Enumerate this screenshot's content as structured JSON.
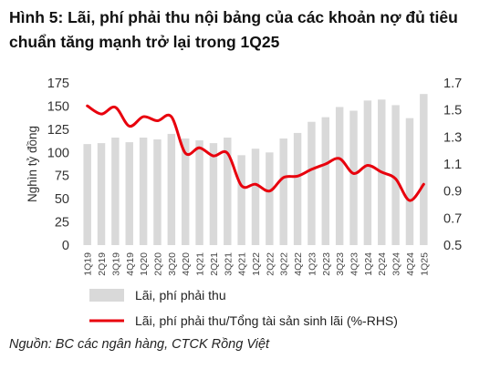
{
  "chart_data": {
    "type": "bar",
    "title": "Hình 5: Lãi, phí phải thu nội bảng của các khoản nợ đủ tiêu chuẩn tăng mạnh trở lại trong 1Q25",
    "source": "Nguồn: BC các ngân hàng, CTCK Rồng Việt",
    "ylabel": "Nghìn tỷ đồng",
    "ylim": [
      0,
      175
    ],
    "yticks": [
      "0",
      "25",
      "50",
      "75",
      "100",
      "125",
      "150",
      "175"
    ],
    "y2lim": [
      0.5,
      1.7
    ],
    "y2ticks": [
      "0.5",
      "0.7",
      "0.9",
      "1.1",
      "1.3",
      "1.5",
      "1.7"
    ],
    "categories": [
      "1Q19",
      "2Q19",
      "3Q19",
      "4Q19",
      "1Q20",
      "2Q20",
      "3Q20",
      "4Q20",
      "1Q21",
      "2Q21",
      "3Q21",
      "4Q21",
      "1Q22",
      "2Q22",
      "3Q22",
      "4Q22",
      "1Q23",
      "2Q23",
      "3Q23",
      "4Q23",
      "1Q24",
      "2Q24",
      "3Q24",
      "4Q24",
      "1Q25"
    ],
    "series": [
      {
        "name": "Lãi, phí phải thu",
        "type": "bar",
        "axis": "left",
        "color": "#d9d9d9",
        "values": [
          109,
          110,
          116,
          111,
          116,
          114,
          120,
          115,
          113,
          110,
          116,
          97,
          104,
          100,
          115,
          121,
          133,
          138,
          149,
          145,
          156,
          157,
          151,
          137,
          163
        ]
      },
      {
        "name": "Lãi, phí phải thu/Tổng tài sản sinh lãi (%-RHS)",
        "type": "line",
        "axis": "right",
        "color": "#e8000d",
        "values": [
          1.53,
          1.47,
          1.52,
          1.38,
          1.45,
          1.42,
          1.45,
          1.18,
          1.22,
          1.16,
          1.18,
          0.94,
          0.95,
          0.9,
          1.0,
          1.01,
          1.06,
          1.1,
          1.14,
          1.03,
          1.09,
          1.04,
          0.99,
          0.83,
          0.95
        ]
      }
    ],
    "legend_position": "bottom",
    "grid": false
  }
}
